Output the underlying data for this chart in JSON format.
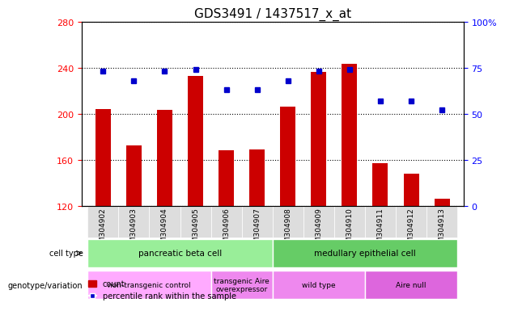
{
  "title": "GDS3491 / 1437517_x_at",
  "samples": [
    "GSM304902",
    "GSM304903",
    "GSM304904",
    "GSM304905",
    "GSM304906",
    "GSM304907",
    "GSM304908",
    "GSM304909",
    "GSM304910",
    "GSM304911",
    "GSM304912",
    "GSM304913"
  ],
  "counts": [
    204,
    172,
    203,
    233,
    168,
    169,
    206,
    236,
    243,
    157,
    148,
    126
  ],
  "percentiles": [
    73,
    68,
    73,
    74,
    63,
    63,
    68,
    73,
    74,
    57,
    57,
    52
  ],
  "ylim_left": [
    120,
    280
  ],
  "ylim_right": [
    0,
    100
  ],
  "yticks_left": [
    120,
    160,
    200,
    240,
    280
  ],
  "yticks_right": [
    0,
    25,
    50,
    75,
    100
  ],
  "bar_color": "#cc0000",
  "dot_color": "#0000cc",
  "cell_type_groups": [
    {
      "label": "pancreatic beta cell",
      "start": 0,
      "end": 5,
      "color": "#99ee99"
    },
    {
      "label": "medullary epithelial cell",
      "start": 6,
      "end": 11,
      "color": "#66cc66"
    }
  ],
  "genotype_groups": [
    {
      "label": "non-transgenic control",
      "start": 0,
      "end": 3,
      "color": "#ffaaff"
    },
    {
      "label": "transgenic Aire\noverexpressor",
      "start": 4,
      "end": 5,
      "color": "#ee88ee"
    },
    {
      "label": "wild type",
      "start": 6,
      "end": 8,
      "color": "#ee88ee"
    },
    {
      "label": "Aire null",
      "start": 9,
      "end": 11,
      "color": "#dd66dd"
    }
  ],
  "legend_count_color": "#cc0000",
  "legend_dot_color": "#0000cc",
  "background_color": "#ffffff",
  "tick_area_color": "#dddddd"
}
